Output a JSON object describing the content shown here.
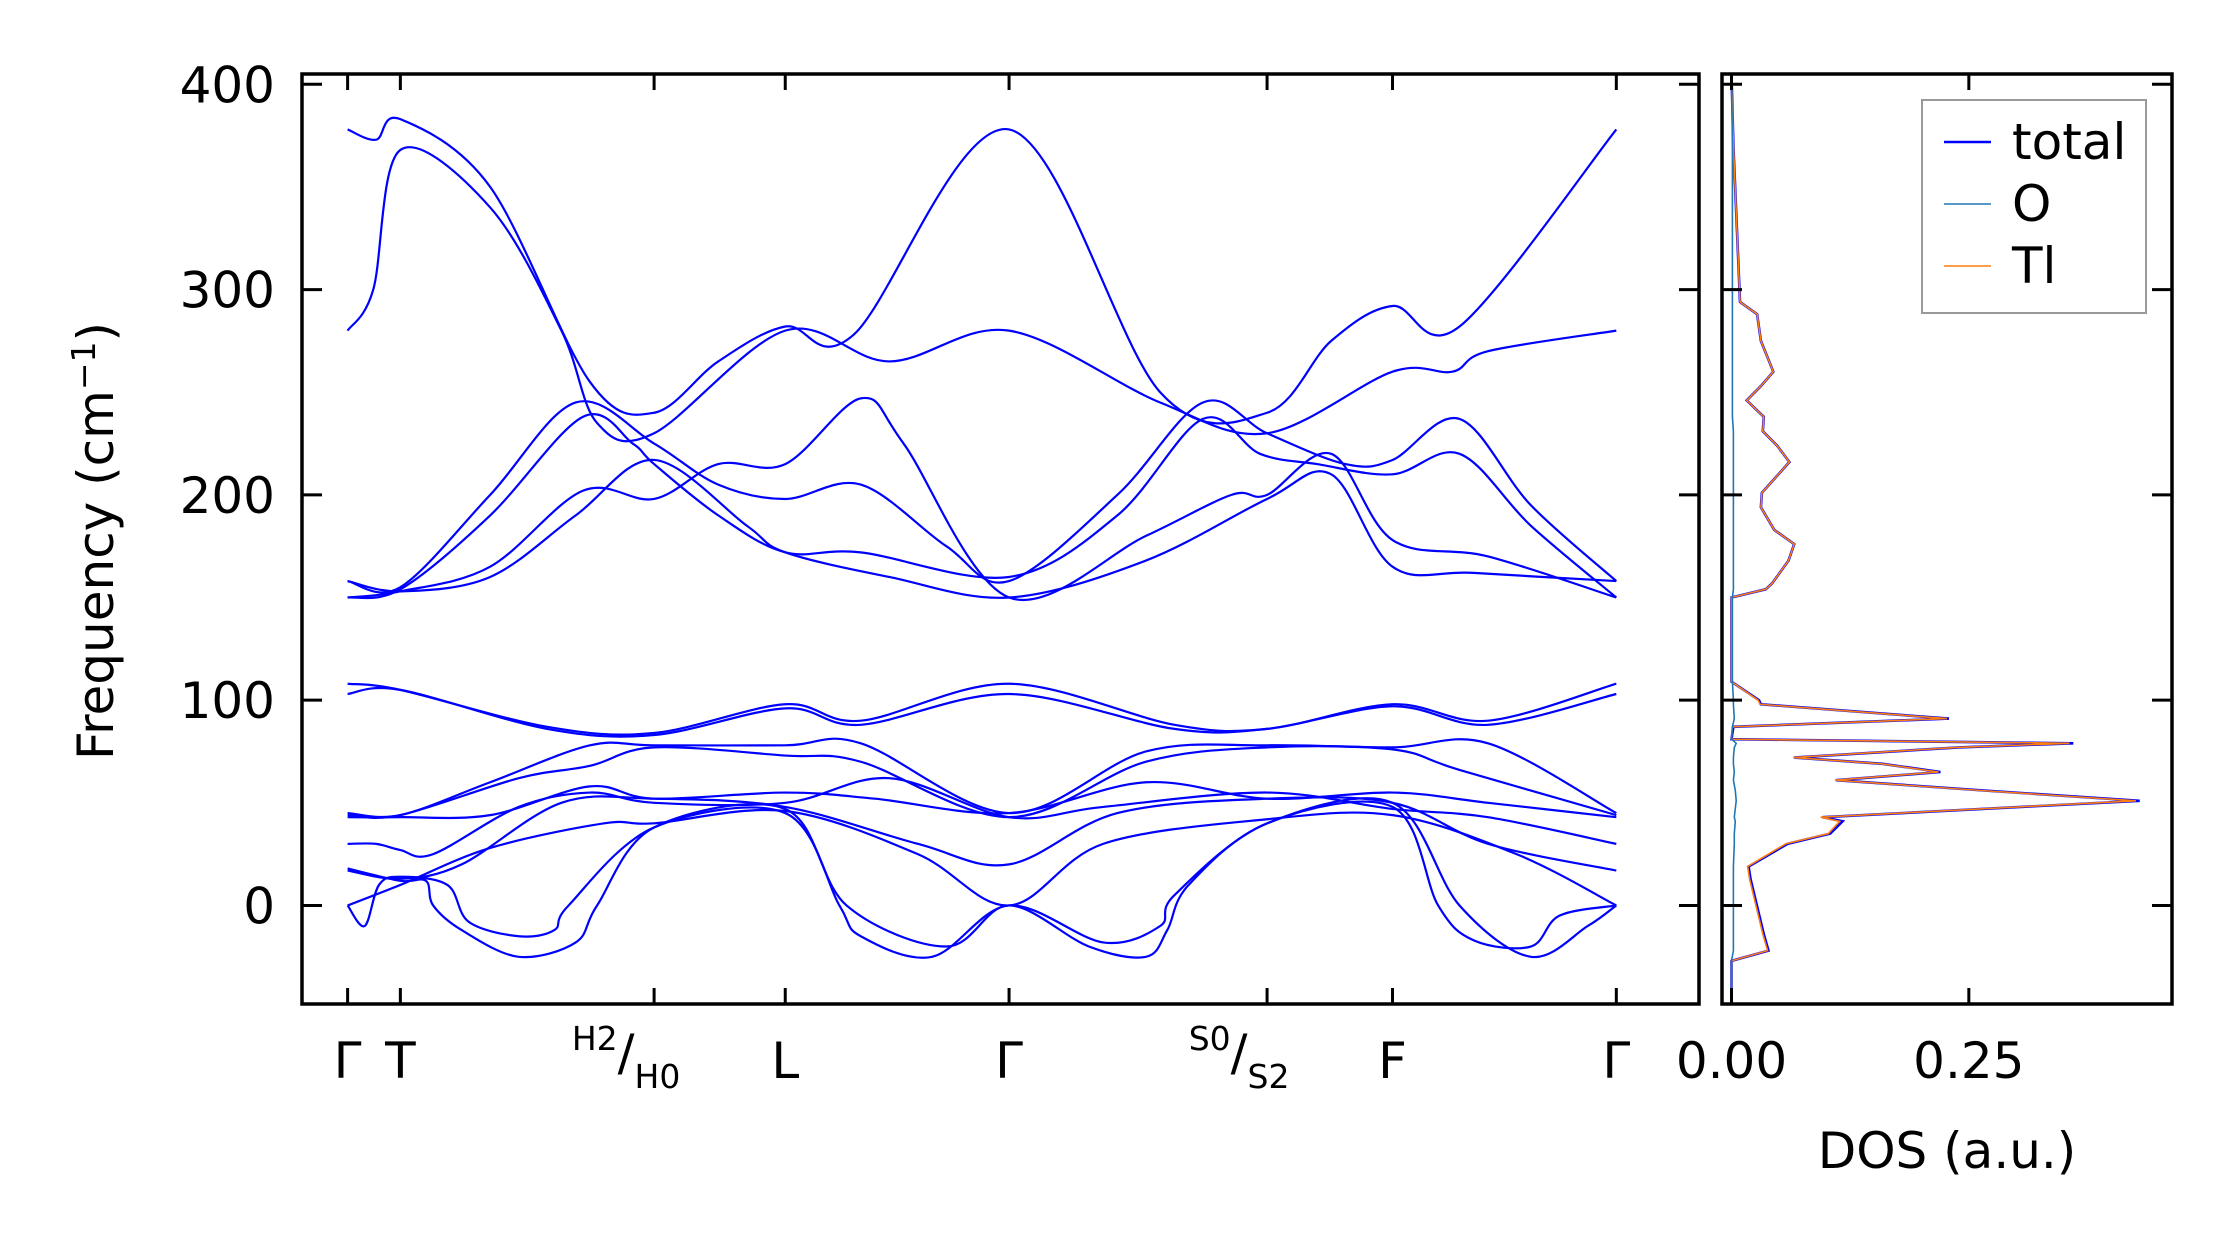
{
  "chart_data": [
    {
      "type": "line",
      "title": "",
      "ylabel": "Frequency (cm⁻¹)",
      "ylabel_main": "Frequency (cm",
      "ylabel_sup": "−1",
      "ylabel_close": ")",
      "ylim": [
        -48,
        405
      ],
      "yticks": [
        0,
        100,
        200,
        300,
        400
      ],
      "ytick_labels": [
        "0",
        "100",
        "200",
        "300",
        "400"
      ],
      "grid": false,
      "line_color": "#0000ff",
      "kpoints": [
        {
          "dist": 0,
          "label": "Γ"
        },
        {
          "dist": 37,
          "label": "T"
        },
        {
          "dist": 215,
          "label": "H2/H0",
          "sup": "H",
          "sup_sub": "2",
          "sub": "H",
          "sub_sub": "0"
        },
        {
          "dist": 307,
          "label": "L"
        },
        {
          "dist": 464,
          "label": "Γ"
        },
        {
          "dist": 645,
          "label": "S0/S2",
          "sup": "S",
          "sup_sub": "0",
          "sub": "S",
          "sub_sub": "2"
        },
        {
          "dist": 733,
          "label": "F"
        },
        {
          "dist": 890,
          "label": "Γ"
        }
      ],
      "xlim": [
        -32,
        948
      ],
      "bands": [
        [
          [
            0,
            378
          ],
          [
            20,
            373
          ],
          [
            37,
            383
          ],
          [
            100,
            350
          ],
          [
            170,
            255
          ],
          [
            215,
            240
          ],
          [
            260,
            265
          ],
          [
            307,
            282
          ],
          [
            355,
            278
          ],
          [
            464,
            378
          ],
          [
            570,
            250
          ],
          [
            645,
            240
          ],
          [
            690,
            275
          ],
          [
            733,
            292
          ],
          [
            780,
            282
          ],
          [
            890,
            378
          ]
        ],
        [
          [
            0,
            280
          ],
          [
            18,
            300
          ],
          [
            37,
            368
          ],
          [
            100,
            340
          ],
          [
            150,
            280
          ],
          [
            175,
            235
          ],
          [
            215,
            230
          ],
          [
            307,
            280
          ],
          [
            380,
            265
          ],
          [
            464,
            280
          ],
          [
            570,
            245
          ],
          [
            645,
            230
          ],
          [
            733,
            260
          ],
          [
            775,
            260
          ],
          [
            800,
            270
          ],
          [
            890,
            280
          ]
        ],
        [
          [
            0,
            158
          ],
          [
            37,
            155
          ],
          [
            100,
            200
          ],
          [
            160,
            245
          ],
          [
            215,
            225
          ],
          [
            260,
            205
          ],
          [
            307,
            198
          ],
          [
            360,
            205
          ],
          [
            420,
            175
          ],
          [
            464,
            158
          ],
          [
            540,
            200
          ],
          [
            600,
            245
          ],
          [
            645,
            230
          ],
          [
            700,
            215
          ],
          [
            733,
            217
          ],
          [
            780,
            237
          ],
          [
            830,
            195
          ],
          [
            890,
            158
          ]
        ],
        [
          [
            0,
            150
          ],
          [
            37,
            154
          ],
          [
            100,
            190
          ],
          [
            165,
            238
          ],
          [
            200,
            225
          ],
          [
            215,
            215
          ],
          [
            260,
            190
          ],
          [
            307,
            172
          ],
          [
            360,
            172
          ],
          [
            464,
            160
          ],
          [
            540,
            190
          ],
          [
            600,
            237
          ],
          [
            640,
            220
          ],
          [
            680,
            215
          ],
          [
            733,
            210
          ],
          [
            780,
            220
          ],
          [
            830,
            185
          ],
          [
            890,
            150
          ]
        ],
        [
          [
            0,
            150
          ],
          [
            37,
            153
          ],
          [
            100,
            165
          ],
          [
            165,
            202
          ],
          [
            215,
            198
          ],
          [
            260,
            215
          ],
          [
            307,
            215
          ],
          [
            360,
            247
          ],
          [
            390,
            225
          ],
          [
            464,
            150
          ],
          [
            560,
            180
          ],
          [
            620,
            200
          ],
          [
            645,
            200
          ],
          [
            690,
            220
          ],
          [
            733,
            178
          ],
          [
            800,
            170
          ],
          [
            890,
            150
          ]
        ],
        [
          [
            0,
            158
          ],
          [
            37,
            153
          ],
          [
            100,
            160
          ],
          [
            160,
            190
          ],
          [
            215,
            217
          ],
          [
            280,
            185
          ],
          [
            307,
            172
          ],
          [
            380,
            160
          ],
          [
            464,
            150
          ],
          [
            560,
            168
          ],
          [
            645,
            198
          ],
          [
            690,
            210
          ],
          [
            733,
            165
          ],
          [
            790,
            162
          ],
          [
            890,
            158
          ]
        ],
        [
          [
            0,
            108
          ],
          [
            37,
            105
          ],
          [
            140,
            87
          ],
          [
            215,
            84
          ],
          [
            307,
            98
          ],
          [
            360,
            90
          ],
          [
            464,
            108
          ],
          [
            580,
            88
          ],
          [
            645,
            86
          ],
          [
            733,
            98
          ],
          [
            800,
            90
          ],
          [
            890,
            108
          ]
        ],
        [
          [
            0,
            103
          ],
          [
            37,
            105
          ],
          [
            140,
            86
          ],
          [
            215,
            83
          ],
          [
            307,
            96
          ],
          [
            360,
            88
          ],
          [
            464,
            103
          ],
          [
            580,
            86
          ],
          [
            645,
            86
          ],
          [
            733,
            97
          ],
          [
            800,
            88
          ],
          [
            890,
            103
          ]
        ],
        [
          [
            0,
            45
          ],
          [
            37,
            44
          ],
          [
            100,
            60
          ],
          [
            170,
            78
          ],
          [
            215,
            78
          ],
          [
            307,
            78
          ],
          [
            360,
            79
          ],
          [
            464,
            45
          ],
          [
            560,
            75
          ],
          [
            645,
            78
          ],
          [
            733,
            77
          ],
          [
            800,
            79
          ],
          [
            890,
            45
          ]
        ],
        [
          [
            0,
            44
          ],
          [
            37,
            44
          ],
          [
            120,
            62
          ],
          [
            170,
            68
          ],
          [
            215,
            77
          ],
          [
            307,
            73
          ],
          [
            360,
            70
          ],
          [
            464,
            43
          ],
          [
            560,
            70
          ],
          [
            645,
            77
          ],
          [
            733,
            76
          ],
          [
            780,
            66
          ],
          [
            890,
            44
          ]
        ],
        [
          [
            0,
            43
          ],
          [
            37,
            43
          ],
          [
            100,
            44
          ],
          [
            170,
            58
          ],
          [
            215,
            52
          ],
          [
            307,
            55
          ],
          [
            370,
            52
          ],
          [
            464,
            45
          ],
          [
            560,
            60
          ],
          [
            645,
            52
          ],
          [
            733,
            55
          ],
          [
            800,
            50
          ],
          [
            890,
            43
          ]
        ],
        [
          [
            0,
            30
          ],
          [
            20,
            30
          ],
          [
            37,
            27
          ],
          [
            60,
            25
          ],
          [
            120,
            48
          ],
          [
            170,
            55
          ],
          [
            215,
            50
          ],
          [
            307,
            50
          ],
          [
            380,
            62
          ],
          [
            464,
            43
          ],
          [
            530,
            48
          ],
          [
            645,
            55
          ],
          [
            733,
            47
          ],
          [
            800,
            43
          ],
          [
            890,
            30
          ]
        ],
        [
          [
            0,
            17
          ],
          [
            37,
            13
          ],
          [
            80,
            20
          ],
          [
            150,
            50
          ],
          [
            215,
            52
          ],
          [
            307,
            48
          ],
          [
            400,
            30
          ],
          [
            464,
            20
          ],
          [
            540,
            45
          ],
          [
            645,
            52
          ],
          [
            733,
            50
          ],
          [
            800,
            30
          ],
          [
            890,
            17
          ]
        ],
        [
          [
            0,
            0
          ],
          [
            37,
            10
          ],
          [
            100,
            28
          ],
          [
            180,
            40
          ],
          [
            215,
            40
          ],
          [
            307,
            46
          ],
          [
            400,
            25
          ],
          [
            464,
            0
          ],
          [
            530,
            30
          ],
          [
            645,
            42
          ],
          [
            733,
            44
          ],
          [
            820,
            25
          ],
          [
            890,
            0
          ]
        ],
        [
          [
            0,
            0
          ],
          [
            12,
            -10
          ],
          [
            22,
            10
          ],
          [
            37,
            14
          ],
          [
            70,
            10
          ],
          [
            85,
            -8
          ],
          [
            120,
            -15
          ],
          [
            145,
            -12
          ],
          [
            155,
            0
          ],
          [
            215,
            38
          ],
          [
            307,
            45
          ],
          [
            345,
            0
          ],
          [
            360,
            -15
          ],
          [
            410,
            -25
          ],
          [
            464,
            0
          ],
          [
            530,
            -18
          ],
          [
            570,
            -10
          ],
          [
            580,
            5
          ],
          [
            645,
            40
          ],
          [
            733,
            48
          ],
          [
            765,
            0
          ],
          [
            790,
            -17
          ],
          [
            830,
            -20
          ],
          [
            850,
            -5
          ],
          [
            890,
            0
          ]
        ],
        [
          [
            0,
            18
          ],
          [
            37,
            12
          ],
          [
            55,
            12
          ],
          [
            60,
            0
          ],
          [
            80,
            -12
          ],
          [
            120,
            -25
          ],
          [
            160,
            -18
          ],
          [
            175,
            0
          ],
          [
            215,
            38
          ],
          [
            307,
            47
          ],
          [
            350,
            0
          ],
          [
            420,
            -20
          ],
          [
            464,
            0
          ],
          [
            520,
            -20
          ],
          [
            560,
            -25
          ],
          [
            575,
            -12
          ],
          [
            590,
            10
          ],
          [
            645,
            40
          ],
          [
            733,
            50
          ],
          [
            780,
            0
          ],
          [
            830,
            -25
          ],
          [
            870,
            -10
          ],
          [
            890,
            0
          ]
        ]
      ]
    },
    {
      "type": "line",
      "xlabel": "DOS (a.u.)",
      "xlim": [
        -0.01,
        0.464
      ],
      "xticks": [
        0.0,
        0.25
      ],
      "xtick_labels": [
        "0.00",
        "0.25"
      ],
      "ylim": [
        -48,
        405
      ],
      "legend_position": "top-right",
      "freq": [
        405,
        370,
        294,
        288,
        275,
        260,
        253,
        246,
        238,
        231,
        224,
        216,
        201,
        194,
        183,
        176,
        168,
        157,
        154,
        150,
        109,
        100,
        98,
        91,
        87,
        81,
        79,
        77,
        72,
        69,
        65,
        61,
        56,
        51,
        43,
        41,
        35,
        30,
        19,
        13,
        -14,
        -22,
        -27,
        -48
      ],
      "series": [
        {
          "name": "total",
          "color": "#0000ff",
          "values": [
            0,
            0.002,
            0.009,
            0.027,
            0.031,
            0.044,
            0.031,
            0.016,
            0.034,
            0.033,
            0.048,
            0.061,
            0.032,
            0.031,
            0.045,
            0.066,
            0.06,
            0.043,
            0.036,
            0,
            0,
            0.029,
            0.031,
            0.229,
            0.002,
            0,
            0.36,
            0.239,
            0.066,
            0.159,
            0.22,
            0.11,
            0.266,
            0.43,
            0.096,
            0.117,
            0.104,
            0.059,
            0.018,
            0.02,
            0.034,
            0.039,
            0,
            0
          ]
        },
        {
          "name": "O",
          "color": "#1f77b4",
          "values": [
            0,
            0.001,
            0.001,
            0.001,
            0.001,
            0.001,
            0.001,
            0.001,
            0.001,
            0.002,
            0.002,
            0.002,
            0.002,
            0.002,
            0.002,
            0.002,
            0.002,
            0.002,
            0.002,
            0.001,
            0.001,
            0.002,
            0.002,
            0.003,
            0.001,
            0,
            0.005,
            0.003,
            0.002,
            0.002,
            0.003,
            0.002,
            0.004,
            0.005,
            0.003,
            0.004,
            0.003,
            0.003,
            0.002,
            0.002,
            0.002,
            0.002,
            0,
            0
          ]
        },
        {
          "name": "Tl",
          "color": "#ff7f0e",
          "values": [
            0,
            0.002,
            0.009,
            0.027,
            0.031,
            0.044,
            0.031,
            0.016,
            0.034,
            0.033,
            0.048,
            0.061,
            0.032,
            0.031,
            0.045,
            0.066,
            0.06,
            0.043,
            0.036,
            0,
            0,
            0.028,
            0.03,
            0.227,
            0.001,
            0,
            0.356,
            0.237,
            0.065,
            0.158,
            0.218,
            0.109,
            0.263,
            0.426,
            0.094,
            0.114,
            0.102,
            0.057,
            0.017,
            0.019,
            0.033,
            0.038,
            0,
            0
          ]
        }
      ]
    }
  ]
}
